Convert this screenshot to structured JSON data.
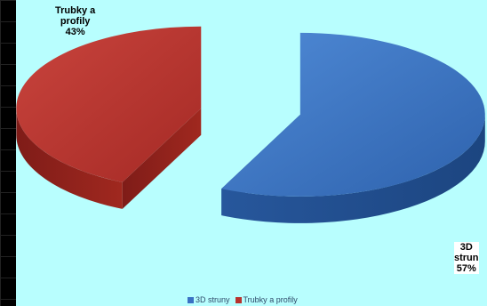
{
  "chart_data": {
    "type": "pie",
    "title": "",
    "categories": [
      "3D struny",
      "Trubky a profily"
    ],
    "values": [
      57,
      43
    ],
    "data_labels": [
      {
        "lines": [
          "3D",
          "strun",
          "57%"
        ]
      },
      {
        "lines": [
          "Trubky a",
          "profily",
          "43%"
        ]
      }
    ],
    "colors": [
      "#3a72c4",
      "#b8332e"
    ],
    "legend_position": "bottom",
    "style": "3d-exploded"
  },
  "legend": {
    "items": [
      "3D struny",
      "Trubky a profily"
    ]
  }
}
